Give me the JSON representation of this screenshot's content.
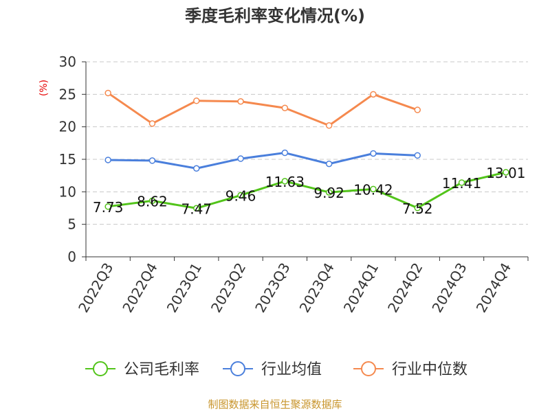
{
  "chart_data": {
    "type": "line",
    "title": "季度毛利率变化情况(%)",
    "ylabel": "(%)",
    "xlabel": "",
    "ylim": [
      0,
      30
    ],
    "yticks": [
      0,
      5,
      10,
      15,
      20,
      25,
      30
    ],
    "grid": true,
    "legend_position": "bottom",
    "categories": [
      "2022Q3",
      "2022Q4",
      "2023Q1",
      "2023Q2",
      "2023Q3",
      "2023Q4",
      "2024Q1",
      "2024Q2",
      "2024Q3",
      "2024Q4"
    ],
    "series": [
      {
        "name": "公司毛利率",
        "color": "#52c41a",
        "values": [
          7.73,
          8.62,
          7.47,
          9.46,
          11.63,
          9.92,
          10.42,
          7.52,
          11.41,
          13.01
        ],
        "labels": [
          "7.73",
          "8.62",
          "7.47",
          "9.46",
          "11.63",
          "9.92",
          "10.42",
          "7.52",
          "11.41",
          "13.01"
        ]
      },
      {
        "name": "行业均值",
        "color": "#4a7fdc",
        "values": [
          14.9,
          14.8,
          13.6,
          15.1,
          16.0,
          14.3,
          15.9,
          15.6,
          null,
          null
        ]
      },
      {
        "name": "行业中位数",
        "color": "#f5894e",
        "values": [
          25.2,
          20.5,
          24.0,
          23.9,
          22.9,
          20.2,
          25.0,
          22.6,
          null,
          null
        ]
      }
    ],
    "source": "制图数据来自恒生聚源数据库"
  }
}
